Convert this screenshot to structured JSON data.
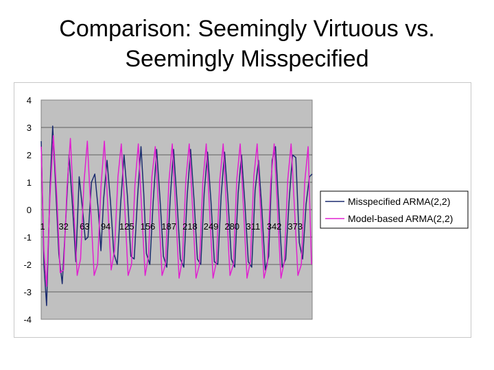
{
  "slide": {
    "title_line1": "Comparison: Seemingly Virtuous vs.",
    "title_line2": "Seemingly Misspecified"
  },
  "chart_data": {
    "type": "line",
    "title": "",
    "xlabel": "",
    "ylabel": "",
    "ylim": [
      -4,
      4
    ],
    "y_ticks": [
      "4",
      "3",
      "2",
      "1",
      "0",
      "-1",
      "-2",
      "-3",
      "-4"
    ],
    "x_tick_labels": [
      "1",
      "32",
      "63",
      "94",
      "125",
      "156",
      "187",
      "218",
      "249",
      "280",
      "311",
      "342",
      "373"
    ],
    "x_range": [
      1,
      400
    ],
    "grid": "horizontal",
    "plot_background": "#c0c0c0",
    "legend": {
      "placement": "right",
      "entries": [
        "Misspecified ARMA(2,2)",
        "Model-based ARMA(2,2)"
      ]
    },
    "series": [
      {
        "name": "Misspecified ARMA(2,2)",
        "color": "#1a2a6e",
        "x": [
          1,
          5,
          9,
          14,
          18,
          22,
          27,
          32,
          37,
          42,
          47,
          52,
          57,
          62,
          66,
          70,
          75,
          80,
          85,
          89,
          93,
          98,
          103,
          108,
          113,
          118,
          123,
          128,
          133,
          138,
          143,
          148,
          152,
          156,
          161,
          166,
          171,
          176,
          181,
          186,
          191,
          196,
          201,
          206,
          211,
          216,
          221,
          226,
          231,
          236,
          241,
          246,
          251,
          256,
          261,
          266,
          271,
          276,
          281,
          286,
          291,
          296,
          301,
          306,
          311,
          316,
          321,
          326,
          331,
          336,
          341,
          346,
          351,
          356,
          361,
          366,
          371,
          376,
          381,
          386,
          391,
          396,
          400
        ],
        "y": [
          2.5,
          -2.0,
          -3.5,
          0.8,
          3.05,
          1.0,
          -1.6,
          -2.7,
          -0.5,
          2.0,
          0.2,
          -1.9,
          1.2,
          0.0,
          -1.1,
          -1.0,
          1.0,
          1.3,
          0.0,
          -1.5,
          0.4,
          1.8,
          0.3,
          -1.6,
          -2.0,
          0.2,
          2.0,
          0.5,
          -1.7,
          -1.8,
          0.5,
          2.3,
          0.6,
          -1.6,
          -2.0,
          0.3,
          2.2,
          0.4,
          -1.7,
          -2.1,
          0.4,
          2.2,
          0.3,
          -1.8,
          -2.1,
          0.5,
          2.2,
          0.4,
          -1.8,
          -2.0,
          0.6,
          2.1,
          0.3,
          -1.9,
          -2.0,
          0.5,
          2.1,
          0.4,
          -1.8,
          -2.1,
          0.6,
          2.0,
          0.2,
          -1.9,
          -2.1,
          0.7,
          1.8,
          0.0,
          -2.2,
          -1.7,
          1.8,
          2.3,
          0.0,
          -2.1,
          -1.8,
          0.3,
          2.0,
          1.9,
          -1.2,
          -1.8,
          0.2,
          1.2,
          1.3
        ]
      },
      {
        "name": "Model-based ARMA(2,2)",
        "color": "#e020d0",
        "x": [
          1,
          5,
          9,
          14,
          19,
          24,
          29,
          34,
          39,
          44,
          49,
          54,
          59,
          64,
          69,
          74,
          79,
          84,
          89,
          94,
          99,
          104,
          109,
          114,
          119,
          124,
          129,
          134,
          139,
          144,
          149,
          154,
          159,
          164,
          169,
          174,
          179,
          184,
          189,
          194,
          199,
          204,
          209,
          214,
          219,
          224,
          229,
          234,
          239,
          244,
          249,
          254,
          259,
          264,
          269,
          274,
          279,
          284,
          289,
          294,
          299,
          304,
          309,
          314,
          319,
          324,
          329,
          334,
          339,
          344,
          349,
          354,
          359,
          364,
          369,
          374,
          379,
          384,
          389,
          394,
          399
        ],
        "y": [
          2.3,
          -1.5,
          -2.8,
          0.5,
          2.7,
          0.5,
          -2.3,
          -2.2,
          0.8,
          2.6,
          0.0,
          -2.4,
          -1.8,
          1.0,
          2.5,
          0.0,
          -2.4,
          -2.0,
          0.8,
          2.5,
          0.2,
          -2.2,
          -1.5,
          1.2,
          2.4,
          0.1,
          -2.4,
          -2.0,
          0.9,
          2.4,
          0.0,
          -2.4,
          -1.7,
          1.2,
          2.3,
          0.0,
          -2.4,
          -2.0,
          1.0,
          2.4,
          0.0,
          -2.5,
          -1.8,
          1.1,
          2.4,
          0.0,
          -2.5,
          -2.0,
          1.0,
          2.4,
          0.0,
          -2.5,
          -1.9,
          1.1,
          2.4,
          0.0,
          -2.4,
          -2.0,
          1.1,
          2.4,
          0.0,
          -2.5,
          -1.9,
          1.2,
          2.4,
          0.0,
          -2.5,
          -2.0,
          1.0,
          2.4,
          0.0,
          -2.5,
          -1.9,
          1.1,
          2.4,
          0.0,
          -2.4,
          -2.0,
          1.0,
          2.3,
          -2.0
        ]
      }
    ]
  }
}
